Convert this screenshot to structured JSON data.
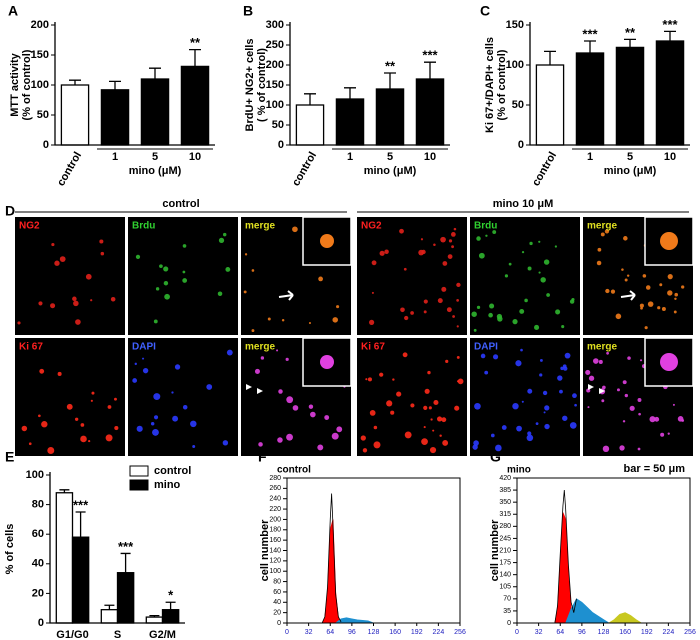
{
  "chart_data": [
    {
      "type": "bar",
      "panel": "A",
      "ylabel": [
        "MTT activity",
        "(% of control)"
      ],
      "categories": [
        "control",
        "1",
        "5",
        "10"
      ],
      "group_label": "mino (μM)",
      "values": [
        100,
        92,
        110,
        131
      ],
      "errors": [
        8,
        14,
        18,
        28
      ],
      "significance": [
        null,
        null,
        null,
        "**"
      ],
      "colors": [
        "#ffffff",
        "#000000",
        "#000000",
        "#000000"
      ],
      "ylim": [
        0,
        200
      ],
      "yticks": [
        0,
        50,
        100,
        150,
        200
      ]
    },
    {
      "type": "bar",
      "panel": "B",
      "ylabel": [
        "BrdU+ NG2+ cells",
        "( % of control)"
      ],
      "categories": [
        "control",
        "1",
        "5",
        "10"
      ],
      "group_label": "mino (μM)",
      "values": [
        100,
        115,
        140,
        165
      ],
      "errors": [
        28,
        28,
        40,
        42
      ],
      "significance": [
        null,
        null,
        "**",
        "***"
      ],
      "colors": [
        "#ffffff",
        "#000000",
        "#000000",
        "#000000"
      ],
      "ylim": [
        0,
        300
      ],
      "yticks": [
        0,
        50,
        100,
        150,
        200,
        250,
        300
      ]
    },
    {
      "type": "bar",
      "panel": "C",
      "ylabel": [
        "Ki 67+/DAPI+ cells",
        "(% of control)"
      ],
      "categories": [
        "control",
        "1",
        "5",
        "10"
      ],
      "group_label": "mino (μM)",
      "values": [
        100,
        115,
        122,
        130
      ],
      "errors": [
        17,
        15,
        10,
        12
      ],
      "significance": [
        null,
        "***",
        "**",
        "***"
      ],
      "colors": [
        "#ffffff",
        "#000000",
        "#000000",
        "#000000"
      ],
      "ylim": [
        0,
        150
      ],
      "yticks": [
        0,
        50,
        100,
        150
      ]
    },
    {
      "type": "grouped_bar",
      "panel": "E",
      "ylabel": [
        "% of cells"
      ],
      "categories": [
        "G1/G0",
        "S",
        "G2/M"
      ],
      "series": [
        {
          "name": "control",
          "color": "#ffffff",
          "values": [
            88,
            9,
            4
          ],
          "errors": [
            2,
            3,
            1
          ],
          "significance": [
            null,
            null,
            null
          ]
        },
        {
          "name": "mino",
          "color": "#000000",
          "values": [
            58,
            34,
            9
          ],
          "errors": [
            17,
            13,
            5
          ],
          "significance": [
            "***",
            "***",
            "*"
          ]
        }
      ],
      "ylim": [
        0,
        100
      ],
      "yticks": [
        0,
        20,
        40,
        60,
        80,
        100
      ],
      "legend": "top-right"
    },
    {
      "type": "histogram_area",
      "panel": "F",
      "title": "control",
      "ylabel": [
        "cell number"
      ],
      "series": [
        {
          "color": "#ff0000",
          "fill": true,
          "x": [
            52,
            56,
            60,
            64,
            68,
            72,
            76,
            80
          ],
          "values": [
            0,
            10,
            60,
            180,
            200,
            60,
            10,
            0
          ]
        },
        {
          "color": "#1e90d0",
          "fill": true,
          "x": [
            72,
            80,
            88,
            96,
            104,
            112,
            120,
            128
          ],
          "values": [
            0,
            8,
            10,
            8,
            6,
            5,
            4,
            0
          ]
        },
        {
          "color": "#000000",
          "fill": false,
          "x": [
            52,
            56,
            60,
            64,
            66,
            68,
            72,
            76,
            80
          ],
          "values": [
            0,
            12,
            70,
            200,
            250,
            190,
            55,
            12,
            2
          ]
        }
      ],
      "xlim": [
        0,
        256
      ],
      "xticks": [
        0,
        32,
        64,
        96,
        128,
        160,
        192,
        224,
        256
      ],
      "ylim": [
        0,
        280
      ],
      "yticks": [
        0,
        20,
        40,
        60,
        80,
        100,
        120,
        140,
        160,
        180,
        200,
        220,
        240,
        260,
        280
      ]
    },
    {
      "type": "histogram_area",
      "panel": "G",
      "title": "mino",
      "ylabel": [
        "cell number"
      ],
      "series": [
        {
          "color": "#ff0000",
          "fill": true,
          "x": [
            56,
            60,
            64,
            68,
            72,
            76,
            80,
            84
          ],
          "values": [
            0,
            40,
            180,
            320,
            300,
            150,
            40,
            0
          ]
        },
        {
          "color": "#1e90d0",
          "fill": true,
          "x": [
            72,
            80,
            88,
            96,
            104,
            112,
            120,
            128,
            136
          ],
          "values": [
            0,
            40,
            70,
            60,
            45,
            30,
            20,
            10,
            0
          ]
        },
        {
          "color": "#c8c820",
          "fill": true,
          "x": [
            136,
            144,
            152,
            160,
            168,
            176,
            184
          ],
          "values": [
            0,
            10,
            25,
            30,
            22,
            10,
            0
          ]
        },
        {
          "color": "#000000",
          "fill": false,
          "x": [
            56,
            60,
            64,
            68,
            70,
            72,
            76,
            80,
            84,
            88
          ],
          "values": [
            0,
            50,
            200,
            340,
            385,
            330,
            170,
            60,
            30,
            70
          ]
        }
      ],
      "xlim": [
        0,
        256
      ],
      "xticks": [
        0,
        32,
        64,
        96,
        128,
        160,
        192,
        224,
        256
      ],
      "ylim": [
        0,
        420
      ],
      "yticks": [
        0,
        35,
        70,
        105,
        140,
        175,
        210,
        245,
        280,
        315,
        350,
        385,
        420
      ]
    }
  ],
  "micrographs": {
    "panel": "D",
    "conditions": [
      "control",
      "mino 10 μM"
    ],
    "channels": [
      [
        "NG2",
        "Brdu",
        "merge"
      ],
      [
        "Ki 67",
        "DAPI",
        "merge"
      ]
    ],
    "scale_bar": "bar = 50 μm"
  }
}
